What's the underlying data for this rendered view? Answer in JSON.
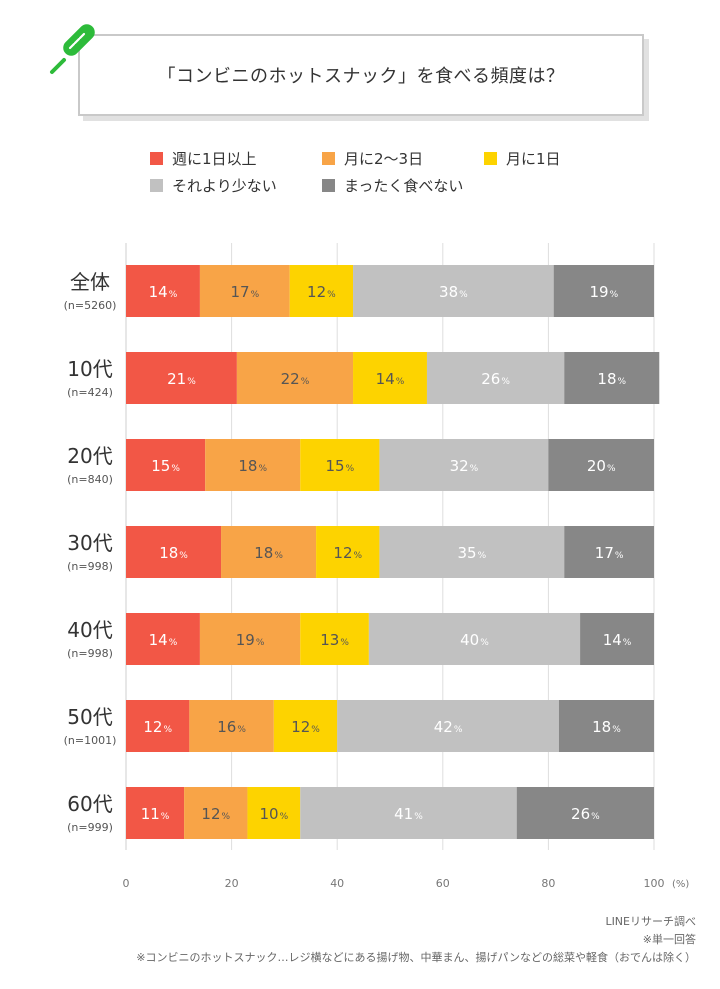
{
  "title": "「コンビニのホットスナック」を食べる頻度は？",
  "icon": "hot-snack-skewer-icon",
  "chart_data": {
    "type": "bar",
    "orientation": "horizontal-stacked",
    "categories": [
      {
        "label": "全体",
        "n": "(n=5260)"
      },
      {
        "label": "10代",
        "n": "(n=424)"
      },
      {
        "label": "20代",
        "n": "(n=840)"
      },
      {
        "label": "30代",
        "n": "(n=998)"
      },
      {
        "label": "40代",
        "n": "(n=998)"
      },
      {
        "label": "50代",
        "n": "(n=1001)"
      },
      {
        "label": "60代",
        "n": "(n=999)"
      }
    ],
    "series": [
      {
        "name": "週に1日以上",
        "color": "#f25746",
        "values": [
          14,
          21,
          15,
          18,
          14,
          12,
          11
        ]
      },
      {
        "name": "月に2〜3日",
        "color": "#f8a447",
        "values": [
          17,
          22,
          18,
          18,
          19,
          16,
          12
        ]
      },
      {
        "name": "月に1日",
        "color": "#fdd300",
        "values": [
          12,
          14,
          15,
          12,
          13,
          12,
          10
        ]
      },
      {
        "name": "それより少ない",
        "color": "#c1c1c1",
        "values": [
          38,
          26,
          32,
          35,
          40,
          42,
          41
        ]
      },
      {
        "name": "まったく食べない",
        "color": "#878787",
        "values": [
          19,
          18,
          20,
          17,
          14,
          18,
          26
        ]
      }
    ],
    "xlim": [
      0,
      100
    ],
    "xticks": [
      "0",
      "20",
      "40",
      "60",
      "80",
      "100"
    ],
    "xunit": "(%)",
    "value_suffix": "%",
    "grid": true,
    "legend": "top"
  },
  "footer": {
    "source": "LINEリサーチ調べ",
    "note1": "※単一回答",
    "note2": "※コンビニのホットスナック…レジ横などにある揚げ物、中華まん、揚げパンなどの総菜や軽食（おでんは除く）"
  }
}
